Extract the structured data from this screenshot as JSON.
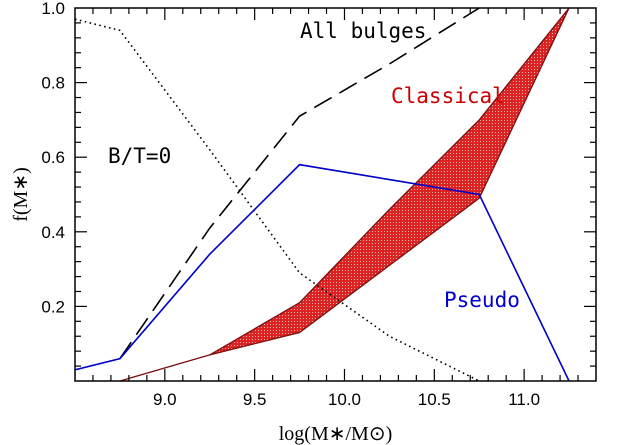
{
  "chart_data": {
    "type": "line",
    "xlabel": "log(M∗/M⊙)",
    "ylabel": "f(M∗)",
    "xlim": [
      8.5,
      11.4
    ],
    "ylim": [
      0.0,
      1.0
    ],
    "x_ticks": [
      9.0,
      9.5,
      10.0,
      10.5,
      11.0
    ],
    "x_tick_labels": [
      "9.0",
      "9.5",
      "10.0",
      "10.5",
      "11.0"
    ],
    "y_ticks": [
      0.2,
      0.4,
      0.6,
      0.8,
      1.0
    ],
    "y_tick_labels": [
      "0.2",
      "0.4",
      "0.6",
      "0.8",
      "1.0"
    ],
    "grid": false,
    "series": [
      {
        "name": "All bulges",
        "style": "dashed",
        "color": "#000000",
        "x": [
          8.75,
          9.25,
          9.75,
          10.25,
          10.75
        ],
        "y": [
          0.06,
          0.41,
          0.71,
          0.85,
          1.0
        ]
      },
      {
        "name": "B/T=0",
        "style": "dotted",
        "color": "#000000",
        "x": [
          8.5,
          8.75,
          9.25,
          9.75,
          10.25,
          10.75
        ],
        "y": [
          0.97,
          0.94,
          0.62,
          0.29,
          0.12,
          0.0
        ]
      },
      {
        "name": "Pseudo",
        "style": "solid",
        "color": "#0000cc",
        "x": [
          8.5,
          8.75,
          9.25,
          9.75,
          10.25,
          10.75,
          11.25
        ],
        "y": [
          0.03,
          0.06,
          0.34,
          0.58,
          0.54,
          0.5,
          0.0
        ]
      },
      {
        "name": "Classical",
        "style": "band",
        "color": "#cc0000",
        "x": [
          8.75,
          9.25,
          9.75,
          10.25,
          10.75,
          11.25
        ],
        "y_upper": [
          0.0,
          0.07,
          0.21,
          0.46,
          0.7,
          1.0
        ],
        "y_lower": [
          0.0,
          0.07,
          0.13,
          0.31,
          0.49,
          1.0
        ]
      }
    ],
    "annotations": [
      {
        "text": "All bulges",
        "color": "#000000"
      },
      {
        "text": "Classical",
        "color": "#cc0000"
      },
      {
        "text": "B/T=0",
        "color": "#000000"
      },
      {
        "text": "Pseudo",
        "color": "#0000cc"
      }
    ]
  }
}
